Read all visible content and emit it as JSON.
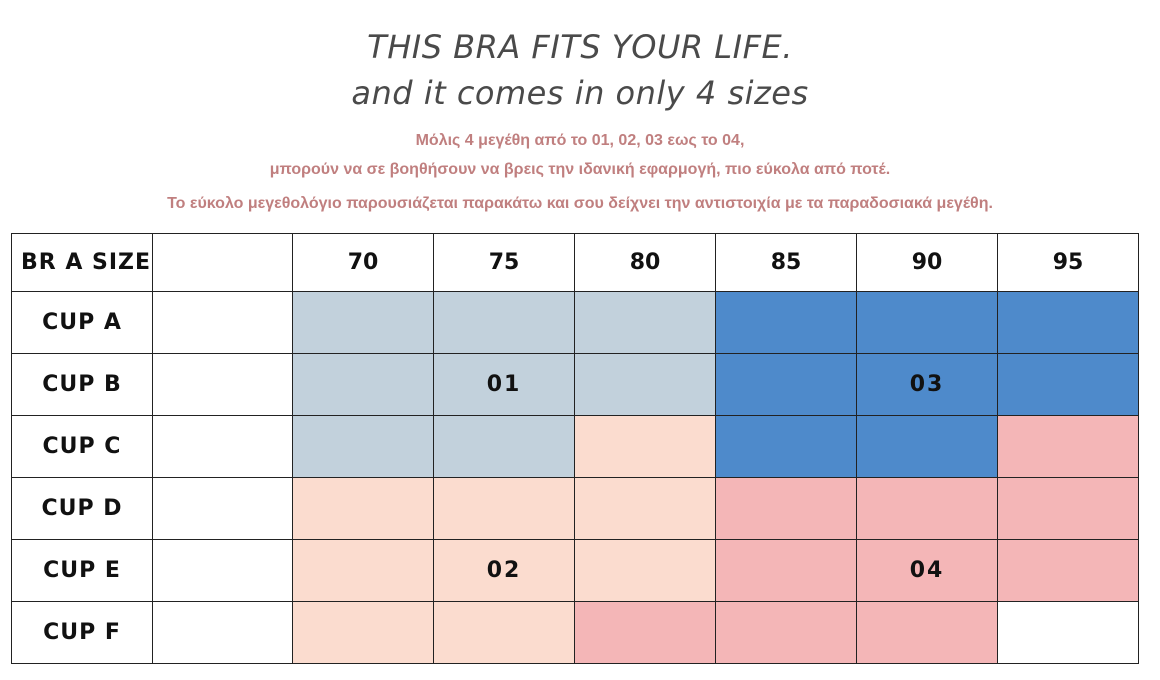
{
  "header": {
    "title_line1": "THIS BRA FITS YOUR LIFE.",
    "title_line2": "and it comes in only 4 sizes",
    "subtitle_line1": "Μόλις 4 μεγέθη από το 01, 02, 03 εως το 04,",
    "subtitle_line2": "μπορούν να σε βοηθήσουν να βρεις την ιδανική εφαρμογή, πιο εύκολα από ποτέ.",
    "subtitle_line3": "Το εύκολο μεγεθολόγιο παρουσιάζεται παρακάτω και σου δείχνει την αντιστοιχία με τα παραδοσιακά μεγέθη."
  },
  "colors": {
    "grey": "#c2d1dc",
    "blue": "#4e8acb",
    "peach": "#fbdccf",
    "pink": "#f4b6b7",
    "white": "#ffffff",
    "subtitle": "#c07f7f",
    "title": "#4a4a4a"
  },
  "table": {
    "header_label": "BR A SIZE",
    "band_sizes": [
      "70",
      "75",
      "80",
      "85",
      "90",
      "95"
    ],
    "cups": [
      {
        "label": "CUP A",
        "cells": [
          {
            "color": "grey",
            "text": ""
          },
          {
            "color": "grey",
            "text": ""
          },
          {
            "color": "grey",
            "text": ""
          },
          {
            "color": "blue",
            "text": ""
          },
          {
            "color": "blue",
            "text": ""
          },
          {
            "color": "blue",
            "text": ""
          }
        ]
      },
      {
        "label": "CUP B",
        "cells": [
          {
            "color": "grey",
            "text": ""
          },
          {
            "color": "grey",
            "text": "01"
          },
          {
            "color": "grey",
            "text": ""
          },
          {
            "color": "blue",
            "text": ""
          },
          {
            "color": "blue",
            "text": "03"
          },
          {
            "color": "blue",
            "text": ""
          }
        ]
      },
      {
        "label": "CUP C",
        "cells": [
          {
            "color": "grey",
            "text": ""
          },
          {
            "color": "grey",
            "text": ""
          },
          {
            "color": "peach",
            "text": ""
          },
          {
            "color": "blue",
            "text": ""
          },
          {
            "color": "blue",
            "text": ""
          },
          {
            "color": "pink",
            "text": ""
          }
        ]
      },
      {
        "label": "CUP D",
        "cells": [
          {
            "color": "peach",
            "text": ""
          },
          {
            "color": "peach",
            "text": ""
          },
          {
            "color": "peach",
            "text": ""
          },
          {
            "color": "pink",
            "text": ""
          },
          {
            "color": "pink",
            "text": ""
          },
          {
            "color": "pink",
            "text": ""
          }
        ]
      },
      {
        "label": "CUP E",
        "cells": [
          {
            "color": "peach",
            "text": ""
          },
          {
            "color": "peach",
            "text": "02"
          },
          {
            "color": "peach",
            "text": ""
          },
          {
            "color": "pink",
            "text": ""
          },
          {
            "color": "pink",
            "text": "04"
          },
          {
            "color": "pink",
            "text": ""
          }
        ]
      },
      {
        "label": "CUP F",
        "cells": [
          {
            "color": "peach",
            "text": ""
          },
          {
            "color": "peach",
            "text": ""
          },
          {
            "color": "pink",
            "text": ""
          },
          {
            "color": "pink",
            "text": ""
          },
          {
            "color": "pink",
            "text": ""
          },
          {
            "color": "white",
            "text": ""
          }
        ]
      }
    ]
  }
}
